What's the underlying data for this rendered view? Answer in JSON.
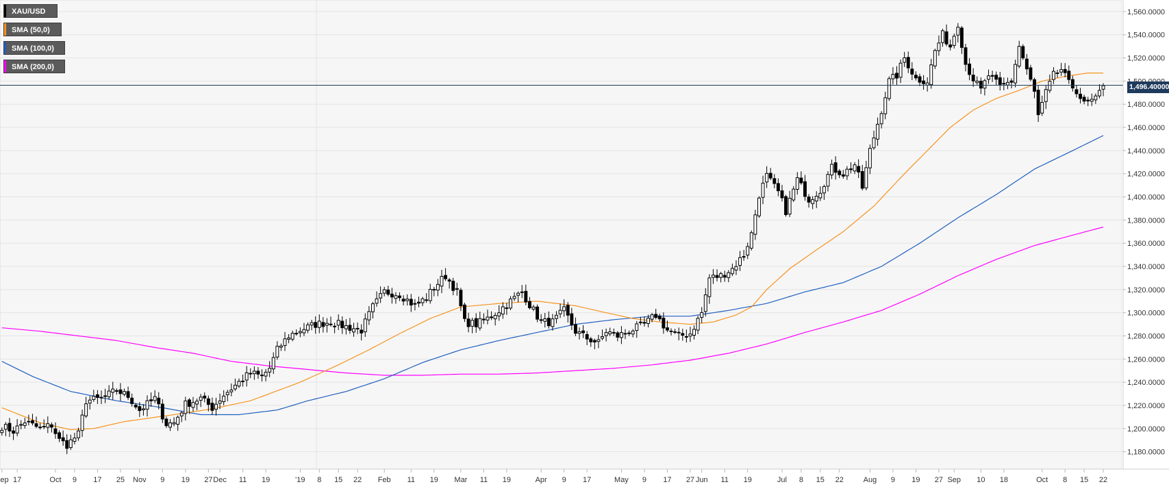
{
  "chart_data": {
    "type": "candlestick",
    "symbol": "XAU/USD",
    "legend": [
      {
        "label": "XAU/USD",
        "color": "#000000"
      },
      {
        "label": "SMA (50,0)",
        "color": "#f7931e"
      },
      {
        "label": "SMA (100,0)",
        "color": "#1f5fbf"
      },
      {
        "label": "SMA (200,0)",
        "color": "#ff00ff"
      }
    ],
    "last_price_label": "1,496.40000",
    "last_price": 1496.4,
    "ylim": [
      1165,
      1570
    ],
    "y_ticks": [
      "1,180.0000",
      "1,200.0000",
      "1,220.0000",
      "1,240.0000",
      "1,260.0000",
      "1,280.0000",
      "1,300.0000",
      "1,320.0000",
      "1,340.0000",
      "1,360.0000",
      "1,380.0000",
      "1,400.0000",
      "1,420.0000",
      "1,440.0000",
      "1,460.0000",
      "1,480.0000",
      "1,500.0000",
      "1,520.0000",
      "1,540.0000",
      "1,560.0000"
    ],
    "y_tick_values": [
      1180,
      1200,
      1220,
      1240,
      1260,
      1280,
      1300,
      1320,
      1340,
      1360,
      1380,
      1400,
      1420,
      1440,
      1460,
      1480,
      1500,
      1520,
      1540,
      1560
    ],
    "x_ticks": [
      {
        "label": "Sep",
        "bar": 0
      },
      {
        "label": "17",
        "bar": 4
      },
      {
        "label": "Oct",
        "bar": 14
      },
      {
        "label": "9",
        "bar": 19
      },
      {
        "label": "17",
        "bar": 25
      },
      {
        "label": "25",
        "bar": 31
      },
      {
        "label": "Nov",
        "bar": 36
      },
      {
        "label": "9",
        "bar": 42
      },
      {
        "label": "19",
        "bar": 48
      },
      {
        "label": "27",
        "bar": 54
      },
      {
        "label": "Dec",
        "bar": 57
      },
      {
        "label": "11",
        "bar": 63
      },
      {
        "label": "19",
        "bar": 69
      },
      {
        "label": "'19",
        "bar": 78
      },
      {
        "label": "8",
        "bar": 83
      },
      {
        "label": "15",
        "bar": 88
      },
      {
        "label": "22",
        "bar": 93
      },
      {
        "label": "Feb",
        "bar": 100
      },
      {
        "label": "11",
        "bar": 107
      },
      {
        "label": "19",
        "bar": 113
      },
      {
        "label": "Mar",
        "bar": 120
      },
      {
        "label": "11",
        "bar": 126
      },
      {
        "label": "19",
        "bar": 132
      },
      {
        "label": "Apr",
        "bar": 141
      },
      {
        "label": "9",
        "bar": 147
      },
      {
        "label": "17",
        "bar": 153
      },
      {
        "label": "May",
        "bar": 162
      },
      {
        "label": "9",
        "bar": 168
      },
      {
        "label": "17",
        "bar": 174
      },
      {
        "label": "27",
        "bar": 180
      },
      {
        "label": "Jun",
        "bar": 183
      },
      {
        "label": "11",
        "bar": 189
      },
      {
        "label": "19",
        "bar": 195
      },
      {
        "label": "Jul",
        "bar": 204
      },
      {
        "label": "8",
        "bar": 209
      },
      {
        "label": "15",
        "bar": 214
      },
      {
        "label": "22",
        "bar": 219
      },
      {
        "label": "Aug",
        "bar": 227
      },
      {
        "label": "9",
        "bar": 233
      },
      {
        "label": "19",
        "bar": 239
      },
      {
        "label": "27",
        "bar": 245
      },
      {
        "label": "Sep",
        "bar": 249
      },
      {
        "label": "10",
        "bar": 256
      },
      {
        "label": "18",
        "bar": 262
      },
      {
        "label": "Oct",
        "bar": 272
      },
      {
        "label": "8",
        "bar": 278
      },
      {
        "label": "15",
        "bar": 283
      },
      {
        "label": "22",
        "bar": 288
      }
    ],
    "total_bars": 291,
    "close_anchors": [
      [
        0,
        1202
      ],
      [
        3,
        1198
      ],
      [
        6,
        1206
      ],
      [
        10,
        1200
      ],
      [
        13,
        1203
      ],
      [
        15,
        1190
      ],
      [
        17,
        1186
      ],
      [
        20,
        1195
      ],
      [
        22,
        1224
      ],
      [
        26,
        1226
      ],
      [
        30,
        1233
      ],
      [
        33,
        1228
      ],
      [
        36,
        1216
      ],
      [
        40,
        1226
      ],
      [
        43,
        1204
      ],
      [
        45,
        1205
      ],
      [
        48,
        1221
      ],
      [
        52,
        1226
      ],
      [
        55,
        1218
      ],
      [
        58,
        1229
      ],
      [
        62,
        1240
      ],
      [
        65,
        1248
      ],
      [
        68,
        1245
      ],
      [
        70,
        1252
      ],
      [
        72,
        1268
      ],
      [
        75,
        1280
      ],
      [
        78,
        1285
      ],
      [
        82,
        1290
      ],
      [
        86,
        1292
      ],
      [
        90,
        1288
      ],
      [
        94,
        1285
      ],
      [
        97,
        1305
      ],
      [
        100,
        1318
      ],
      [
        104,
        1316
      ],
      [
        108,
        1306
      ],
      [
        111,
        1313
      ],
      [
        113,
        1322
      ],
      [
        116,
        1332
      ],
      [
        119,
        1318
      ],
      [
        121,
        1292
      ],
      [
        124,
        1290
      ],
      [
        127,
        1295
      ],
      [
        130,
        1302
      ],
      [
        133,
        1310
      ],
      [
        136,
        1318
      ],
      [
        138,
        1307
      ],
      [
        141,
        1292
      ],
      [
        144,
        1292
      ],
      [
        147,
        1302
      ],
      [
        150,
        1284
      ],
      [
        153,
        1278
      ],
      [
        156,
        1274
      ],
      [
        158,
        1284
      ],
      [
        161,
        1280
      ],
      [
        164,
        1284
      ],
      [
        168,
        1290
      ],
      [
        171,
        1298
      ],
      [
        174,
        1285
      ],
      [
        177,
        1280
      ],
      [
        180,
        1282
      ],
      [
        183,
        1300
      ],
      [
        185,
        1330
      ],
      [
        188,
        1332
      ],
      [
        191,
        1338
      ],
      [
        194,
        1350
      ],
      [
        196,
        1368
      ],
      [
        198,
        1402
      ],
      [
        200,
        1418
      ],
      [
        203,
        1404
      ],
      [
        205,
        1388
      ],
      [
        208,
        1415
      ],
      [
        211,
        1398
      ],
      [
        214,
        1406
      ],
      [
        217,
        1425
      ],
      [
        220,
        1420
      ],
      [
        223,
        1428
      ],
      [
        225,
        1408
      ],
      [
        227,
        1440
      ],
      [
        230,
        1475
      ],
      [
        232,
        1500
      ],
      [
        234,
        1505
      ],
      [
        236,
        1520
      ],
      [
        239,
        1502
      ],
      [
        242,
        1500
      ],
      [
        244,
        1526
      ],
      [
        246,
        1540
      ],
      [
        248,
        1530
      ],
      [
        250,
        1550
      ],
      [
        252,
        1515
      ],
      [
        254,
        1502
      ],
      [
        256,
        1492
      ],
      [
        258,
        1505
      ],
      [
        261,
        1495
      ],
      [
        264,
        1500
      ],
      [
        266,
        1530
      ],
      [
        268,
        1510
      ],
      [
        270,
        1490
      ],
      [
        271,
        1470
      ],
      [
        273,
        1490
      ],
      [
        275,
        1505
      ],
      [
        277,
        1510
      ],
      [
        279,
        1498
      ],
      [
        281,
        1492
      ],
      [
        283,
        1480
      ],
      [
        286,
        1484
      ],
      [
        288,
        1496
      ]
    ],
    "sma50_anchors": [
      [
        0,
        1218
      ],
      [
        10,
        1205
      ],
      [
        18,
        1199
      ],
      [
        24,
        1200
      ],
      [
        32,
        1206
      ],
      [
        45,
        1212
      ],
      [
        55,
        1217
      ],
      [
        65,
        1224
      ],
      [
        78,
        1240
      ],
      [
        88,
        1255
      ],
      [
        96,
        1268
      ],
      [
        104,
        1282
      ],
      [
        112,
        1295
      ],
      [
        120,
        1305
      ],
      [
        130,
        1308
      ],
      [
        140,
        1310
      ],
      [
        150,
        1306
      ],
      [
        158,
        1300
      ],
      [
        165,
        1295
      ],
      [
        172,
        1292
      ],
      [
        180,
        1290
      ],
      [
        186,
        1292
      ],
      [
        192,
        1298
      ],
      [
        196,
        1305
      ],
      [
        200,
        1320
      ],
      [
        206,
        1338
      ],
      [
        212,
        1352
      ],
      [
        220,
        1370
      ],
      [
        228,
        1392
      ],
      [
        236,
        1420
      ],
      [
        242,
        1440
      ],
      [
        248,
        1460
      ],
      [
        254,
        1475
      ],
      [
        260,
        1485
      ],
      [
        266,
        1492
      ],
      [
        272,
        1500
      ],
      [
        278,
        1504
      ],
      [
        284,
        1507
      ],
      [
        288,
        1507
      ]
    ],
    "sma100_anchors": [
      [
        0,
        1258
      ],
      [
        8,
        1245
      ],
      [
        18,
        1232
      ],
      [
        30,
        1224
      ],
      [
        42,
        1218
      ],
      [
        52,
        1212
      ],
      [
        62,
        1212
      ],
      [
        72,
        1216
      ],
      [
        80,
        1224
      ],
      [
        90,
        1232
      ],
      [
        100,
        1243
      ],
      [
        110,
        1257
      ],
      [
        120,
        1268
      ],
      [
        130,
        1276
      ],
      [
        140,
        1283
      ],
      [
        150,
        1290
      ],
      [
        160,
        1294
      ],
      [
        170,
        1297
      ],
      [
        180,
        1297
      ],
      [
        190,
        1302
      ],
      [
        200,
        1308
      ],
      [
        210,
        1318
      ],
      [
        220,
        1326
      ],
      [
        230,
        1340
      ],
      [
        240,
        1360
      ],
      [
        250,
        1382
      ],
      [
        260,
        1402
      ],
      [
        270,
        1424
      ],
      [
        280,
        1440
      ],
      [
        288,
        1453
      ]
    ],
    "sma200_anchors": [
      [
        0,
        1287
      ],
      [
        10,
        1284
      ],
      [
        20,
        1280
      ],
      [
        30,
        1276
      ],
      [
        40,
        1270
      ],
      [
        50,
        1265
      ],
      [
        60,
        1258
      ],
      [
        70,
        1254
      ],
      [
        80,
        1251
      ],
      [
        90,
        1248
      ],
      [
        100,
        1246
      ],
      [
        110,
        1246
      ],
      [
        120,
        1247
      ],
      [
        130,
        1247
      ],
      [
        140,
        1248
      ],
      [
        150,
        1250
      ],
      [
        160,
        1252
      ],
      [
        170,
        1255
      ],
      [
        180,
        1259
      ],
      [
        190,
        1265
      ],
      [
        200,
        1273
      ],
      [
        210,
        1283
      ],
      [
        220,
        1292
      ],
      [
        230,
        1302
      ],
      [
        240,
        1316
      ],
      [
        250,
        1332
      ],
      [
        260,
        1346
      ],
      [
        270,
        1358
      ],
      [
        280,
        1367
      ],
      [
        288,
        1374
      ]
    ]
  }
}
